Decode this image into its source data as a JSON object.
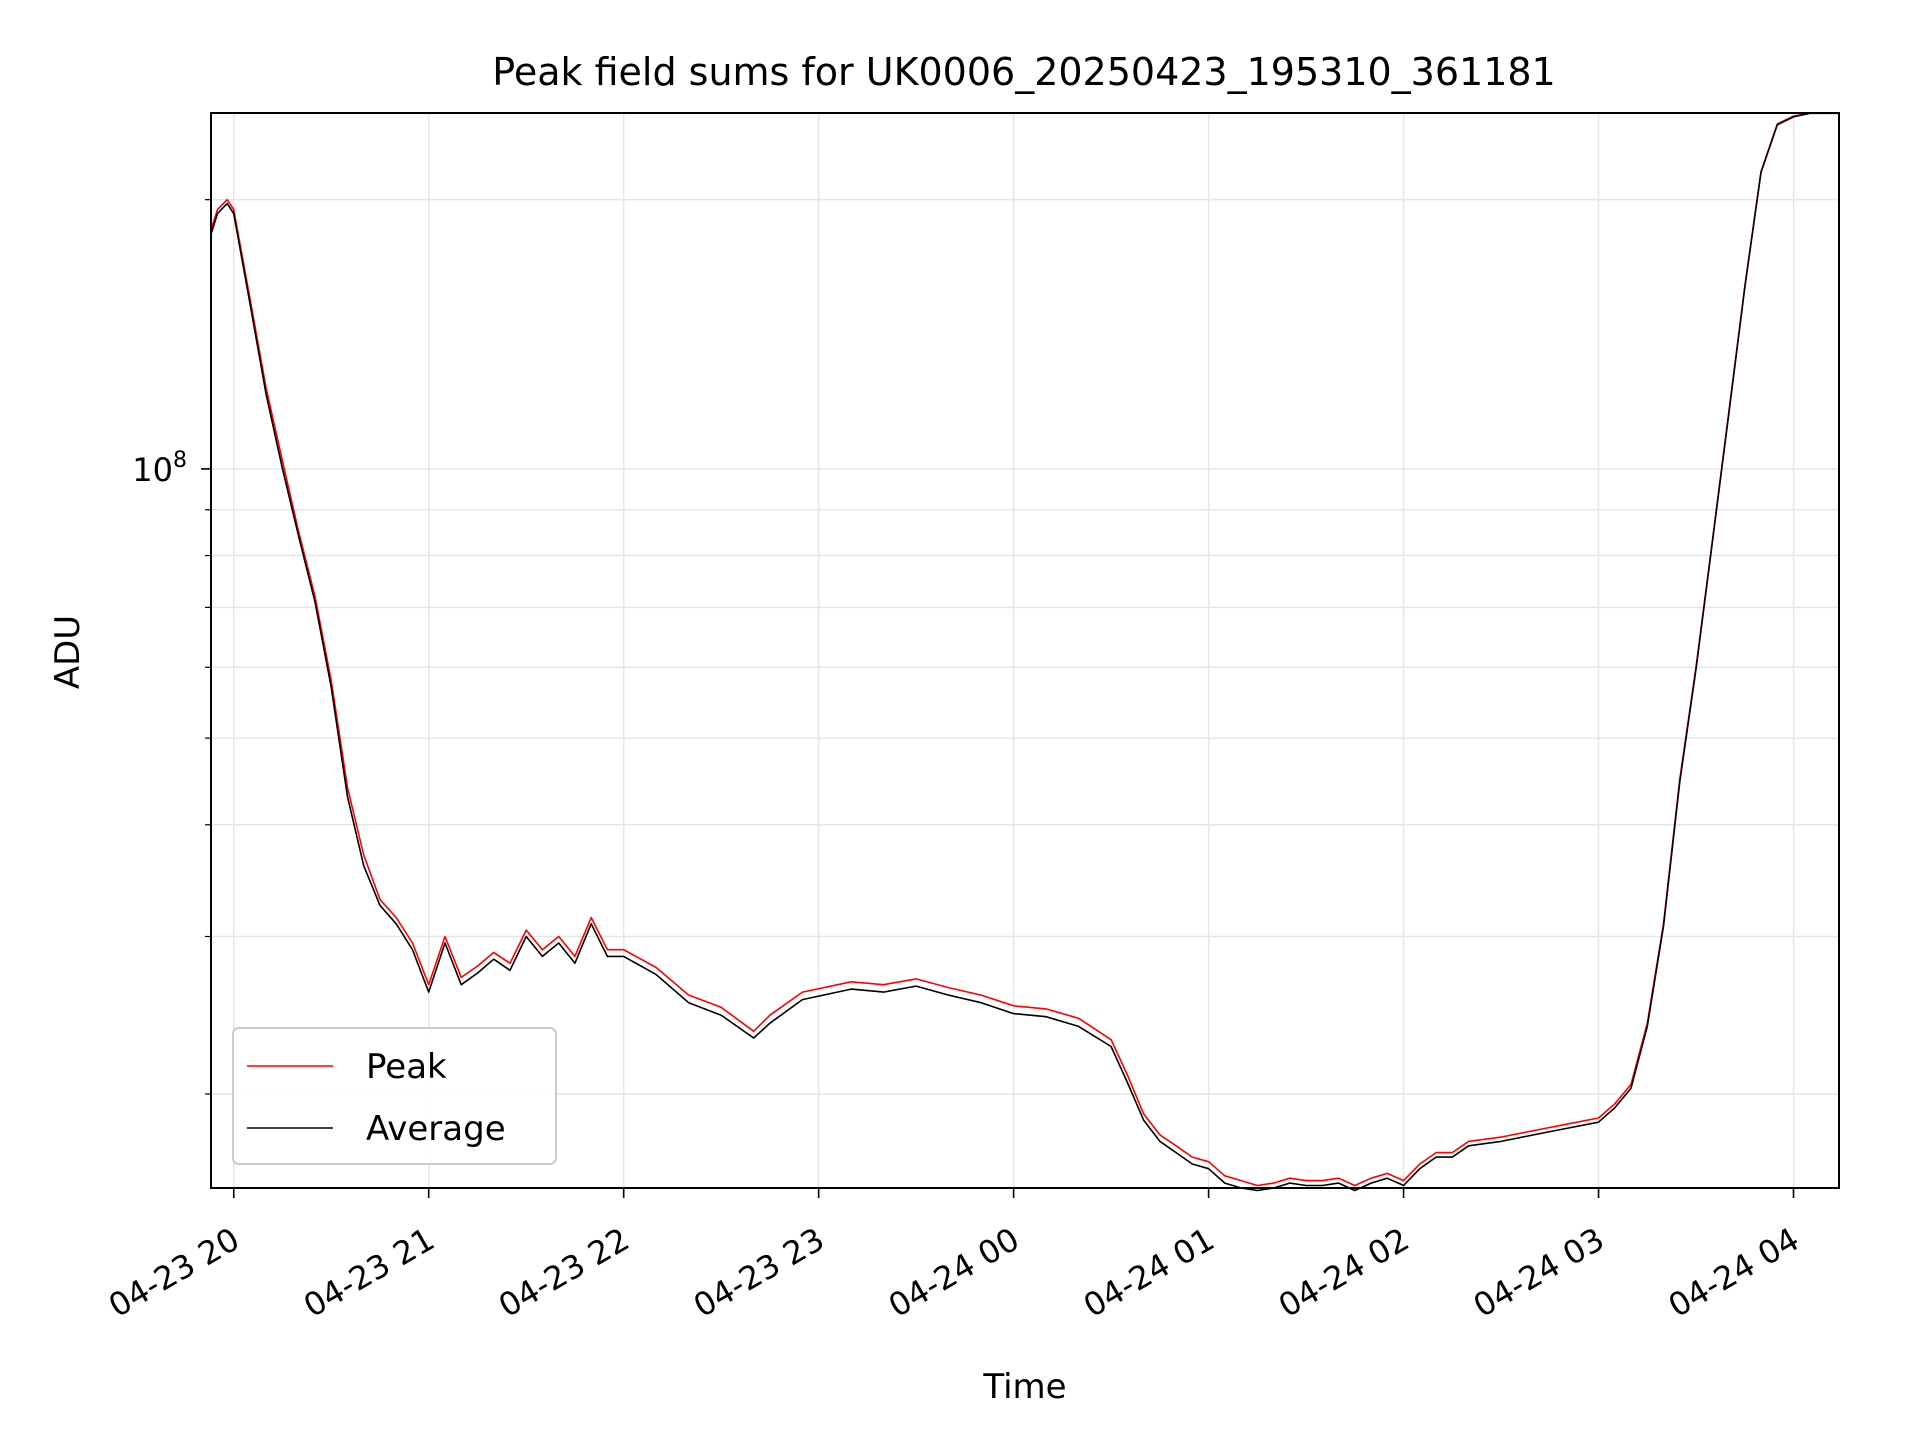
{
  "chart_data": {
    "type": "line",
    "title": "Peak field sums for UK0006_20250423_195310_361181",
    "xlabel": "Time",
    "ylabel": "ADU",
    "yscale": "log",
    "grid": true,
    "legend_position": "lower-left",
    "x_range": [
      "2025-04-23 19:53",
      "2025-04-24 04:14"
    ],
    "ylim": [
      15700000,
      250000000
    ],
    "x_tick_labels": [
      "04-23 20",
      "04-23 21",
      "04-23 22",
      "04-23 23",
      "04-24 00",
      "04-24 01",
      "04-24 02",
      "04-24 03",
      "04-24 04"
    ],
    "x_ticks": [
      "2025-04-23 20:00",
      "2025-04-23 21:00",
      "2025-04-23 22:00",
      "2025-04-23 23:00",
      "2025-04-24 00:00",
      "2025-04-24 01:00",
      "2025-04-24 02:00",
      "2025-04-24 03:00",
      "2025-04-24 04:00"
    ],
    "y_major_ticks": [
      {
        "value": 100000000,
        "base": "10",
        "exponent": "8"
      }
    ],
    "y_minor_ticks": [
      20000000,
      30000000,
      40000000,
      50000000,
      60000000,
      70000000,
      80000000,
      90000000,
      200000000
    ],
    "series": [
      {
        "name": "Peak",
        "color": "#ff0000",
        "x": [
          "2025-04-23 19:53",
          "2025-04-23 19:55",
          "2025-04-23 19:58",
          "2025-04-23 20:00",
          "2025-04-23 20:05",
          "2025-04-23 20:10",
          "2025-04-23 20:15",
          "2025-04-23 20:20",
          "2025-04-23 20:25",
          "2025-04-23 20:30",
          "2025-04-23 20:35",
          "2025-04-23 20:40",
          "2025-04-23 20:45",
          "2025-04-23 20:50",
          "2025-04-23 20:55",
          "2025-04-23 21:00",
          "2025-04-23 21:05",
          "2025-04-23 21:10",
          "2025-04-23 21:15",
          "2025-04-23 21:20",
          "2025-04-23 21:25",
          "2025-04-23 21:30",
          "2025-04-23 21:35",
          "2025-04-23 21:40",
          "2025-04-23 21:45",
          "2025-04-23 21:50",
          "2025-04-23 21:55",
          "2025-04-23 22:00",
          "2025-04-23 22:10",
          "2025-04-23 22:20",
          "2025-04-23 22:30",
          "2025-04-23 22:40",
          "2025-04-23 22:45",
          "2025-04-23 22:55",
          "2025-04-23 23:10",
          "2025-04-23 23:20",
          "2025-04-23 23:30",
          "2025-04-23 23:40",
          "2025-04-23 23:50",
          "2025-04-24 00:00",
          "2025-04-24 00:10",
          "2025-04-24 00:20",
          "2025-04-24 00:30",
          "2025-04-24 00:35",
          "2025-04-24 00:40",
          "2025-04-24 00:45",
          "2025-04-24 00:50",
          "2025-04-24 00:55",
          "2025-04-24 01:00",
          "2025-04-24 01:05",
          "2025-04-24 01:10",
          "2025-04-24 01:15",
          "2025-04-24 01:20",
          "2025-04-24 01:25",
          "2025-04-24 01:30",
          "2025-04-24 01:35",
          "2025-04-24 01:40",
          "2025-04-24 01:45",
          "2025-04-24 01:50",
          "2025-04-24 01:55",
          "2025-04-24 02:00",
          "2025-04-24 02:05",
          "2025-04-24 02:10",
          "2025-04-24 02:15",
          "2025-04-24 02:20",
          "2025-04-24 02:30",
          "2025-04-24 02:40",
          "2025-04-24 02:50",
          "2025-04-24 03:00",
          "2025-04-24 03:05",
          "2025-04-24 03:10",
          "2025-04-24 03:15",
          "2025-04-24 03:20",
          "2025-04-24 03:25",
          "2025-04-24 03:30",
          "2025-04-24 03:35",
          "2025-04-24 03:40",
          "2025-04-24 03:45",
          "2025-04-24 03:50",
          "2025-04-24 03:55",
          "2025-04-24 04:00",
          "2025-04-24 04:05",
          "2025-04-24 04:14"
        ],
        "y": [
          185000000,
          195000000,
          200000000,
          195000000,
          155000000,
          123000000,
          102000000,
          85000000,
          72000000,
          58000000,
          44000000,
          37000000,
          33000000,
          31500000,
          29500000,
          26500000,
          30000000,
          27000000,
          27800000,
          28800000,
          28000000,
          30500000,
          29000000,
          30000000,
          28500000,
          31500000,
          29000000,
          29000000,
          27700000,
          25800000,
          25000000,
          23500000,
          24500000,
          26000000,
          26700000,
          26500000,
          26900000,
          26300000,
          25800000,
          25100000,
          24900000,
          24300000,
          23000000,
          21000000,
          19000000,
          18000000,
          17500000,
          17000000,
          16800000,
          16200000,
          16000000,
          15800000,
          15900000,
          16100000,
          16000000,
          16000000,
          16100000,
          15800000,
          16100000,
          16300000,
          16000000,
          16700000,
          17200000,
          17200000,
          17700000,
          17900000,
          18200000,
          18500000,
          18800000,
          19500000,
          20500000,
          24000000,
          31000000,
          45000000,
          60000000,
          83000000,
          115000000,
          160000000,
          215000000,
          243000000,
          248000000,
          250000000,
          250000000
        ]
      },
      {
        "name": "Average",
        "color": "#000000",
        "x": [
          "2025-04-23 19:53",
          "2025-04-23 19:55",
          "2025-04-23 19:58",
          "2025-04-23 20:00",
          "2025-04-23 20:05",
          "2025-04-23 20:10",
          "2025-04-23 20:15",
          "2025-04-23 20:20",
          "2025-04-23 20:25",
          "2025-04-23 20:30",
          "2025-04-23 20:35",
          "2025-04-23 20:40",
          "2025-04-23 20:45",
          "2025-04-23 20:50",
          "2025-04-23 20:55",
          "2025-04-23 21:00",
          "2025-04-23 21:05",
          "2025-04-23 21:10",
          "2025-04-23 21:15",
          "2025-04-23 21:20",
          "2025-04-23 21:25",
          "2025-04-23 21:30",
          "2025-04-23 21:35",
          "2025-04-23 21:40",
          "2025-04-23 21:45",
          "2025-04-23 21:50",
          "2025-04-23 21:55",
          "2025-04-23 22:00",
          "2025-04-23 22:10",
          "2025-04-23 22:20",
          "2025-04-23 22:30",
          "2025-04-23 22:40",
          "2025-04-23 22:45",
          "2025-04-23 22:55",
          "2025-04-23 23:10",
          "2025-04-23 23:20",
          "2025-04-23 23:30",
          "2025-04-23 23:40",
          "2025-04-23 23:50",
          "2025-04-24 00:00",
          "2025-04-24 00:10",
          "2025-04-24 00:20",
          "2025-04-24 00:30",
          "2025-04-24 00:35",
          "2025-04-24 00:40",
          "2025-04-24 00:45",
          "2025-04-24 00:50",
          "2025-04-24 00:55",
          "2025-04-24 01:00",
          "2025-04-24 01:05",
          "2025-04-24 01:10",
          "2025-04-24 01:15",
          "2025-04-24 01:20",
          "2025-04-24 01:25",
          "2025-04-24 01:30",
          "2025-04-24 01:35",
          "2025-04-24 01:40",
          "2025-04-24 01:45",
          "2025-04-24 01:50",
          "2025-04-24 01:55",
          "2025-04-24 02:00",
          "2025-04-24 02:05",
          "2025-04-24 02:10",
          "2025-04-24 02:15",
          "2025-04-24 02:20",
          "2025-04-24 02:30",
          "2025-04-24 02:40",
          "2025-04-24 02:50",
          "2025-04-24 03:00",
          "2025-04-24 03:05",
          "2025-04-24 03:10",
          "2025-04-24 03:15",
          "2025-04-24 03:20",
          "2025-04-24 03:25",
          "2025-04-24 03:30",
          "2025-04-24 03:35",
          "2025-04-24 03:40",
          "2025-04-24 03:45",
          "2025-04-24 03:50",
          "2025-04-24 03:55",
          "2025-04-24 04:00",
          "2025-04-24 04:05",
          "2025-04-24 04:14"
        ],
        "y": [
          183000000,
          193000000,
          198000000,
          193000000,
          153000000,
          121000000,
          100000000,
          84000000,
          71000000,
          57000000,
          43000000,
          36000000,
          32500000,
          31000000,
          29000000,
          26000000,
          29500000,
          26500000,
          27300000,
          28300000,
          27500000,
          30000000,
          28500000,
          29500000,
          28000000,
          31000000,
          28500000,
          28500000,
          27200000,
          25300000,
          24500000,
          23100000,
          24000000,
          25500000,
          26200000,
          26000000,
          26400000,
          25800000,
          25300000,
          24600000,
          24400000,
          23800000,
          22600000,
          20600000,
          18700000,
          17700000,
          17200000,
          16700000,
          16500000,
          15900000,
          15700000,
          15600000,
          15700000,
          15900000,
          15800000,
          15800000,
          15900000,
          15600000,
          15900000,
          16100000,
          15800000,
          16500000,
          17000000,
          17000000,
          17500000,
          17700000,
          18000000,
          18300000,
          18600000,
          19300000,
          20300000,
          23800000,
          30800000,
          44700000,
          59700000,
          82700000,
          114500000,
          159500000,
          214500000,
          242500000,
          247500000,
          249800000,
          249800000
        ]
      }
    ]
  }
}
